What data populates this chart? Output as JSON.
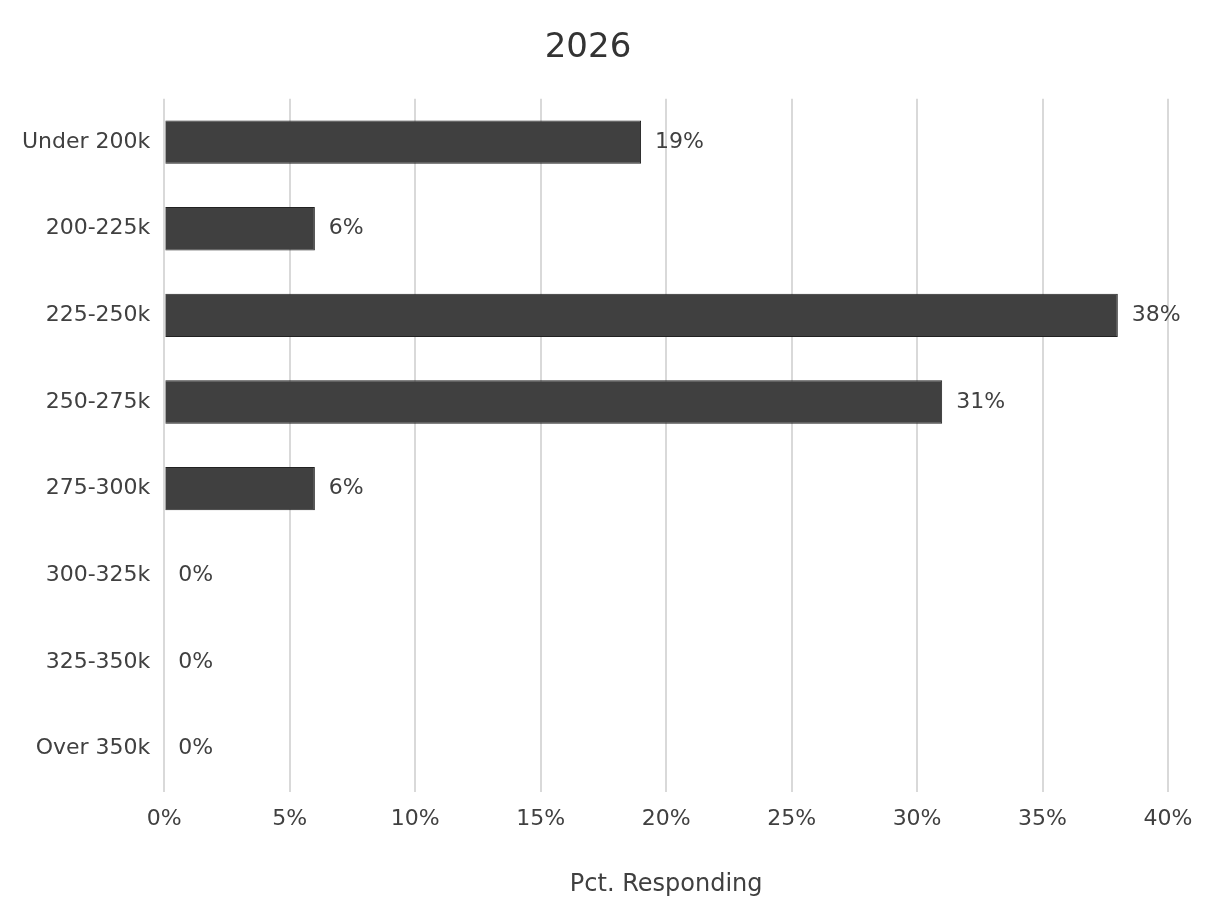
{
  "chart_data": {
    "type": "bar",
    "orientation": "horizontal",
    "title": "2026",
    "xlabel": "Pct. Responding",
    "categories": [
      "Under 200k",
      "200-225k",
      "225-250k",
      "250-275k",
      "275-300k",
      "300-325k",
      "325-350k",
      "Over 350k"
    ],
    "values": [
      19,
      6,
      38,
      31,
      6,
      0,
      0,
      0
    ],
    "value_labels": [
      "19%",
      "6%",
      "38%",
      "31%",
      "6%",
      "0%",
      "0%",
      "0%"
    ],
    "color": "#404040",
    "xlim": [
      0,
      40
    ],
    "xticks": [
      {
        "value": 0,
        "label": "0%"
      },
      {
        "value": 5,
        "label": "5%"
      },
      {
        "value": 10,
        "label": "10%"
      },
      {
        "value": 15,
        "label": "15%"
      },
      {
        "value": 20,
        "label": "20%"
      },
      {
        "value": 25,
        "label": "25%"
      },
      {
        "value": 30,
        "label": "30%"
      },
      {
        "value": 35,
        "label": "35%"
      },
      {
        "value": 40,
        "label": "40%"
      }
    ],
    "grid": "x",
    "legend": false
  }
}
